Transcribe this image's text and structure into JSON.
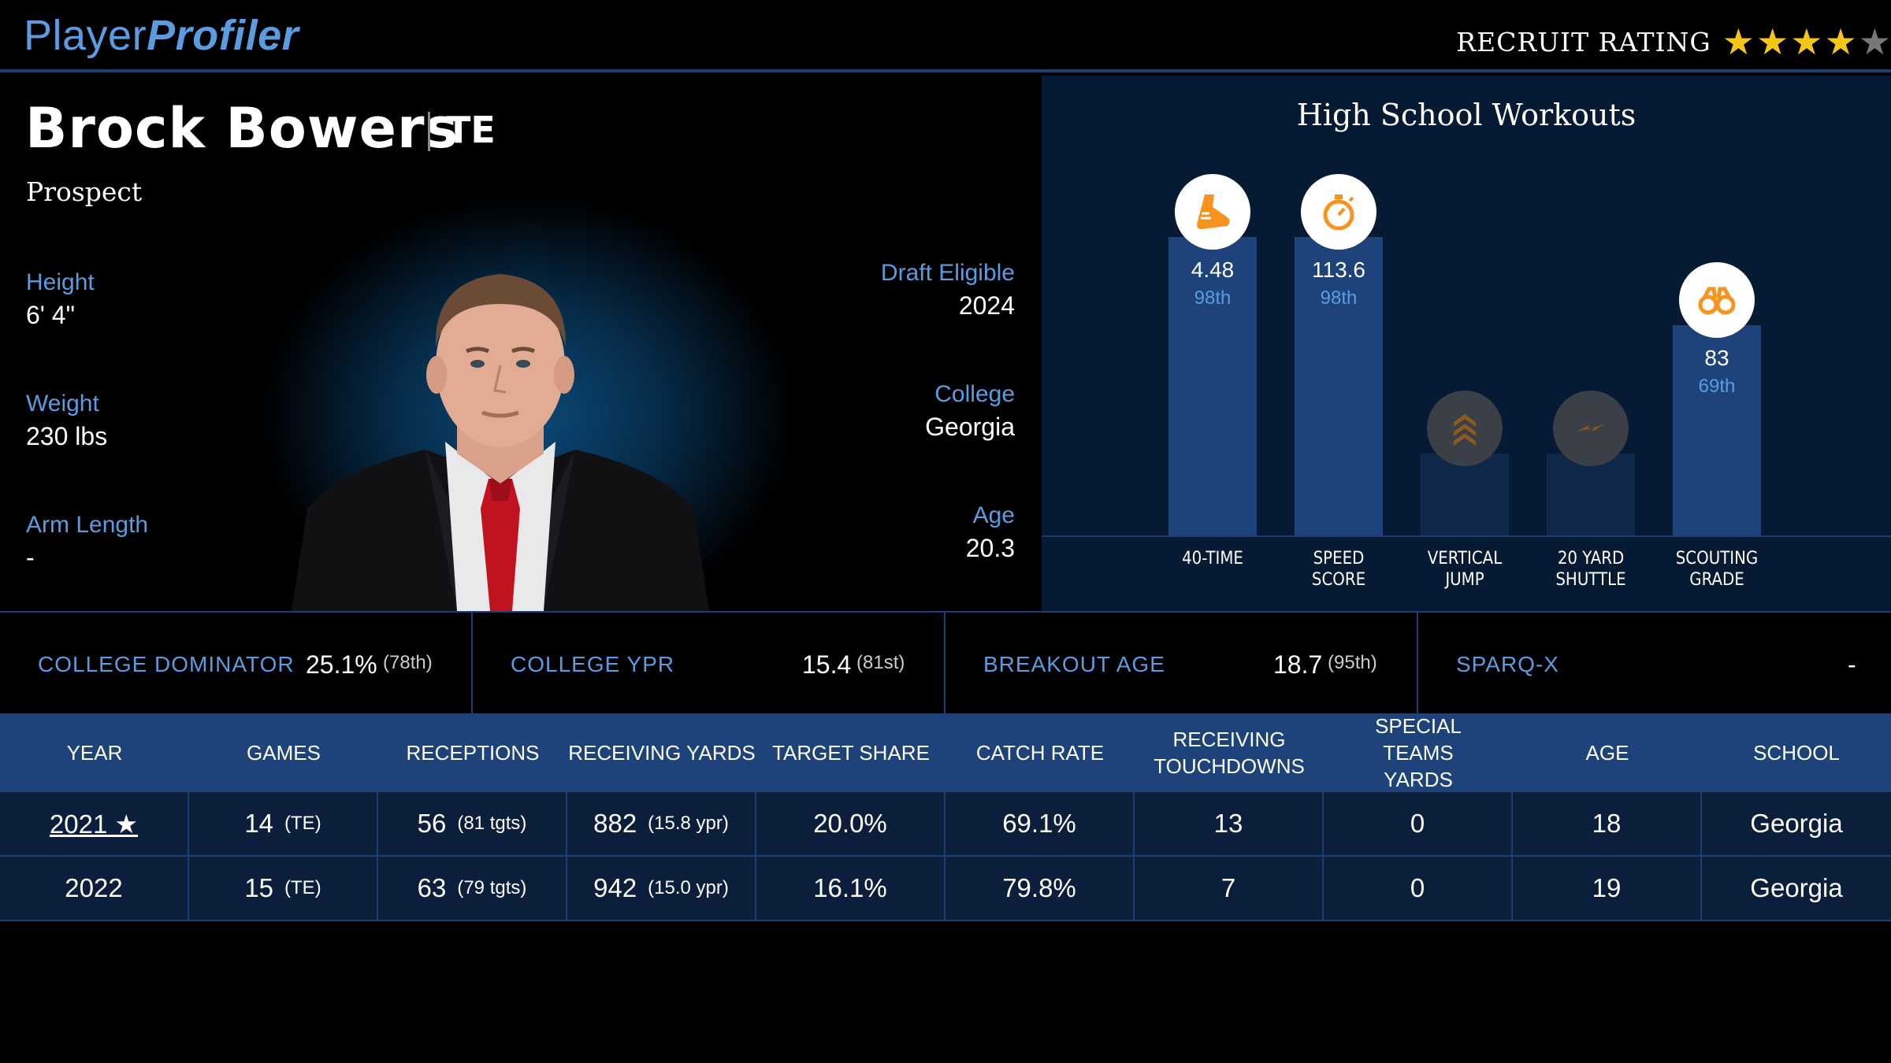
{
  "brand": {
    "part1": "Player",
    "part2": "Profiler"
  },
  "recruit": {
    "label": "RECRUIT RATING",
    "stars": 4,
    "max_stars": 5
  },
  "player": {
    "name": "Brock Bowers",
    "position": "TE",
    "status": "Prospect",
    "height_label": "Height",
    "height": "6' 4\"",
    "weight_label": "Weight",
    "weight": "230 lbs",
    "arm_label": "Arm Length",
    "arm": "-",
    "draft_label": "Draft Eligible",
    "draft": "2024",
    "college_label": "College",
    "college": "Georgia",
    "age_label": "Age",
    "age": "20.3"
  },
  "workouts": {
    "title": "High School Workouts",
    "items": [
      {
        "label1": "40-TIME",
        "label2": "",
        "value": "4.48",
        "pct": "98th",
        "percentile": 98,
        "icon": "shoe-icon",
        "active": true
      },
      {
        "label1": "SPEED",
        "label2": "SCORE",
        "value": "113.6",
        "pct": "98th",
        "percentile": 98,
        "icon": "stopwatch-icon",
        "active": true
      },
      {
        "label1": "VERTICAL",
        "label2": "JUMP",
        "value": "",
        "pct": "",
        "percentile": 0,
        "icon": "chevrons-up-icon",
        "active": false
      },
      {
        "label1": "20 YARD",
        "label2": "SHUTTLE",
        "value": "",
        "pct": "",
        "percentile": 0,
        "icon": "lightning-icon",
        "active": false
      },
      {
        "label1": "SCOUTING",
        "label2": "GRADE",
        "value": "83",
        "pct": "69th",
        "percentile": 69,
        "icon": "binoculars-icon",
        "active": true
      }
    ],
    "colors": {
      "bar": "#1e437a",
      "empty": "#0f2749",
      "icon": "#f7931e"
    }
  },
  "metrics": [
    {
      "label": "COLLEGE DOMINATOR",
      "value": "25.1%",
      "rank": "(78th)"
    },
    {
      "label": "COLLEGE YPR",
      "value": "15.4",
      "rank": "(81st)"
    },
    {
      "label": "BREAKOUT AGE",
      "value": "18.7",
      "rank": "(95th)"
    },
    {
      "label": "SPARQ-X",
      "value": "-",
      "rank": ""
    }
  ],
  "table": {
    "headers": [
      "YEAR",
      "GAMES",
      "RECEPTIONS",
      "RECEIVING YARDS",
      "TARGET SHARE",
      "CATCH RATE",
      "RECEIVING TOUCHDOWNS",
      "SPECIAL TEAMS YARDS",
      "AGE",
      "SCHOOL"
    ],
    "rows": [
      {
        "year": "2021 ★",
        "games": "14",
        "games_sub": "(TE)",
        "rec": "56",
        "rec_sub": "(81 tgts)",
        "yds": "882",
        "yds_sub": "(15.8 ypr)",
        "ts": "20.0%",
        "cr": "69.1%",
        "td": "13",
        "st": "0",
        "age": "18",
        "school": "Georgia"
      },
      {
        "year": "2022",
        "games": "15",
        "games_sub": "(TE)",
        "rec": "63",
        "rec_sub": "(79 tgts)",
        "yds": "942",
        "yds_sub": "(15.0 ypr)",
        "ts": "16.1%",
        "cr": "79.8%",
        "td": "7",
        "st": "0",
        "age": "19",
        "school": "Georgia"
      }
    ]
  }
}
